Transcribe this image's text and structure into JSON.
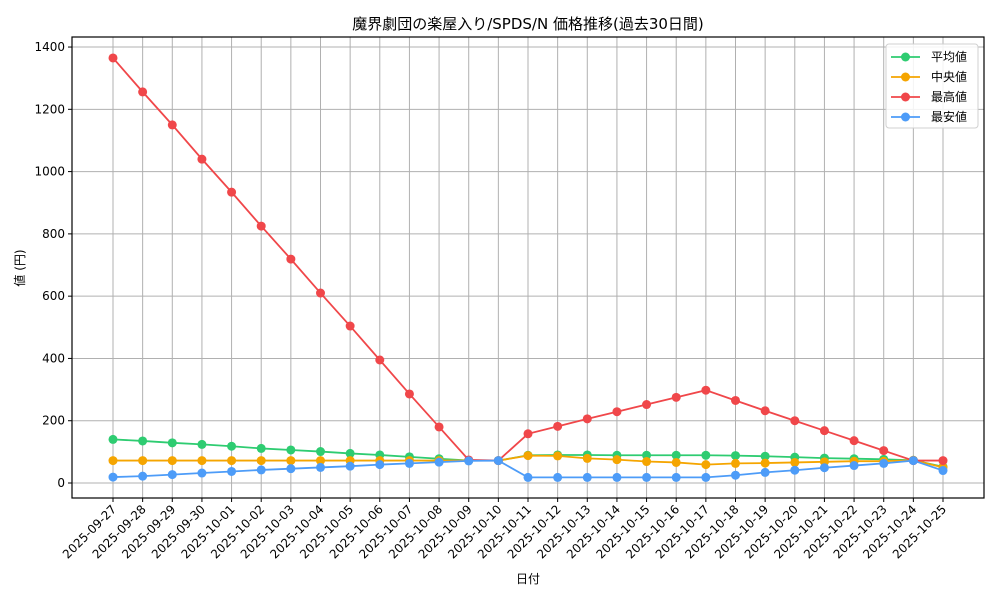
{
  "chart_data": {
    "type": "line",
    "title": "魔界劇団の楽屋入り/SPDS/N 価格推移(過去30日間)",
    "xlabel": "日付",
    "ylabel": "値 (円)",
    "ylim": [
      -50,
      1430
    ],
    "yticks": [
      0,
      200,
      400,
      600,
      800,
      1000,
      1200,
      1400
    ],
    "grid": true,
    "legend_position": "upper right",
    "x": [
      "2025-09-27",
      "2025-09-28",
      "2025-09-29",
      "2025-09-30",
      "2025-10-01",
      "2025-10-02",
      "2025-10-03",
      "2025-10-04",
      "2025-10-05",
      "2025-10-06",
      "2025-10-07",
      "2025-10-08",
      "2025-10-09",
      "2025-10-10",
      "2025-10-11",
      "2025-10-12",
      "2025-10-13",
      "2025-10-14",
      "2025-10-15",
      "2025-10-16",
      "2025-10-17",
      "2025-10-18",
      "2025-10-19",
      "2025-10-20",
      "2025-10-21",
      "2025-10-22",
      "2025-10-23",
      "2025-10-24",
      "2025-10-25"
    ],
    "series": [
      {
        "name": "平均値",
        "color": "#2ecc71",
        "values": [
          140,
          135,
          129,
          124,
          118,
          111,
          106,
          101,
          95,
          90,
          84,
          78,
          72,
          72,
          89,
          90,
          90,
          89,
          89,
          89,
          89,
          88,
          86,
          83,
          80,
          78,
          76,
          73,
          52
        ]
      },
      {
        "name": "中央値",
        "color": "#f5a500",
        "values": [
          72,
          72,
          72,
          72,
          72,
          72,
          72,
          72,
          72,
          72,
          72,
          72,
          72,
          72,
          88,
          87,
          79,
          75,
          69,
          66,
          59,
          63,
          64,
          66,
          68,
          70,
          70,
          73,
          50
        ]
      },
      {
        "name": "最高値",
        "color": "#f0474a",
        "values": [
          1365,
          1256,
          1150,
          1040,
          934,
          825,
          719,
          610,
          504,
          395,
          286,
          180,
          74,
          72,
          158,
          182,
          206,
          229,
          252,
          275,
          298,
          265,
          232,
          200,
          168,
          136,
          104,
          72,
          72
        ]
      },
      {
        "name": "最安値",
        "color": "#4d9cf8",
        "values": [
          19,
          22,
          27,
          32,
          37,
          42,
          46,
          50,
          54,
          59,
          63,
          67,
          71,
          72,
          18,
          18,
          18,
          18,
          18,
          18,
          18,
          25,
          34,
          41,
          49,
          56,
          63,
          72,
          40
        ]
      }
    ]
  }
}
